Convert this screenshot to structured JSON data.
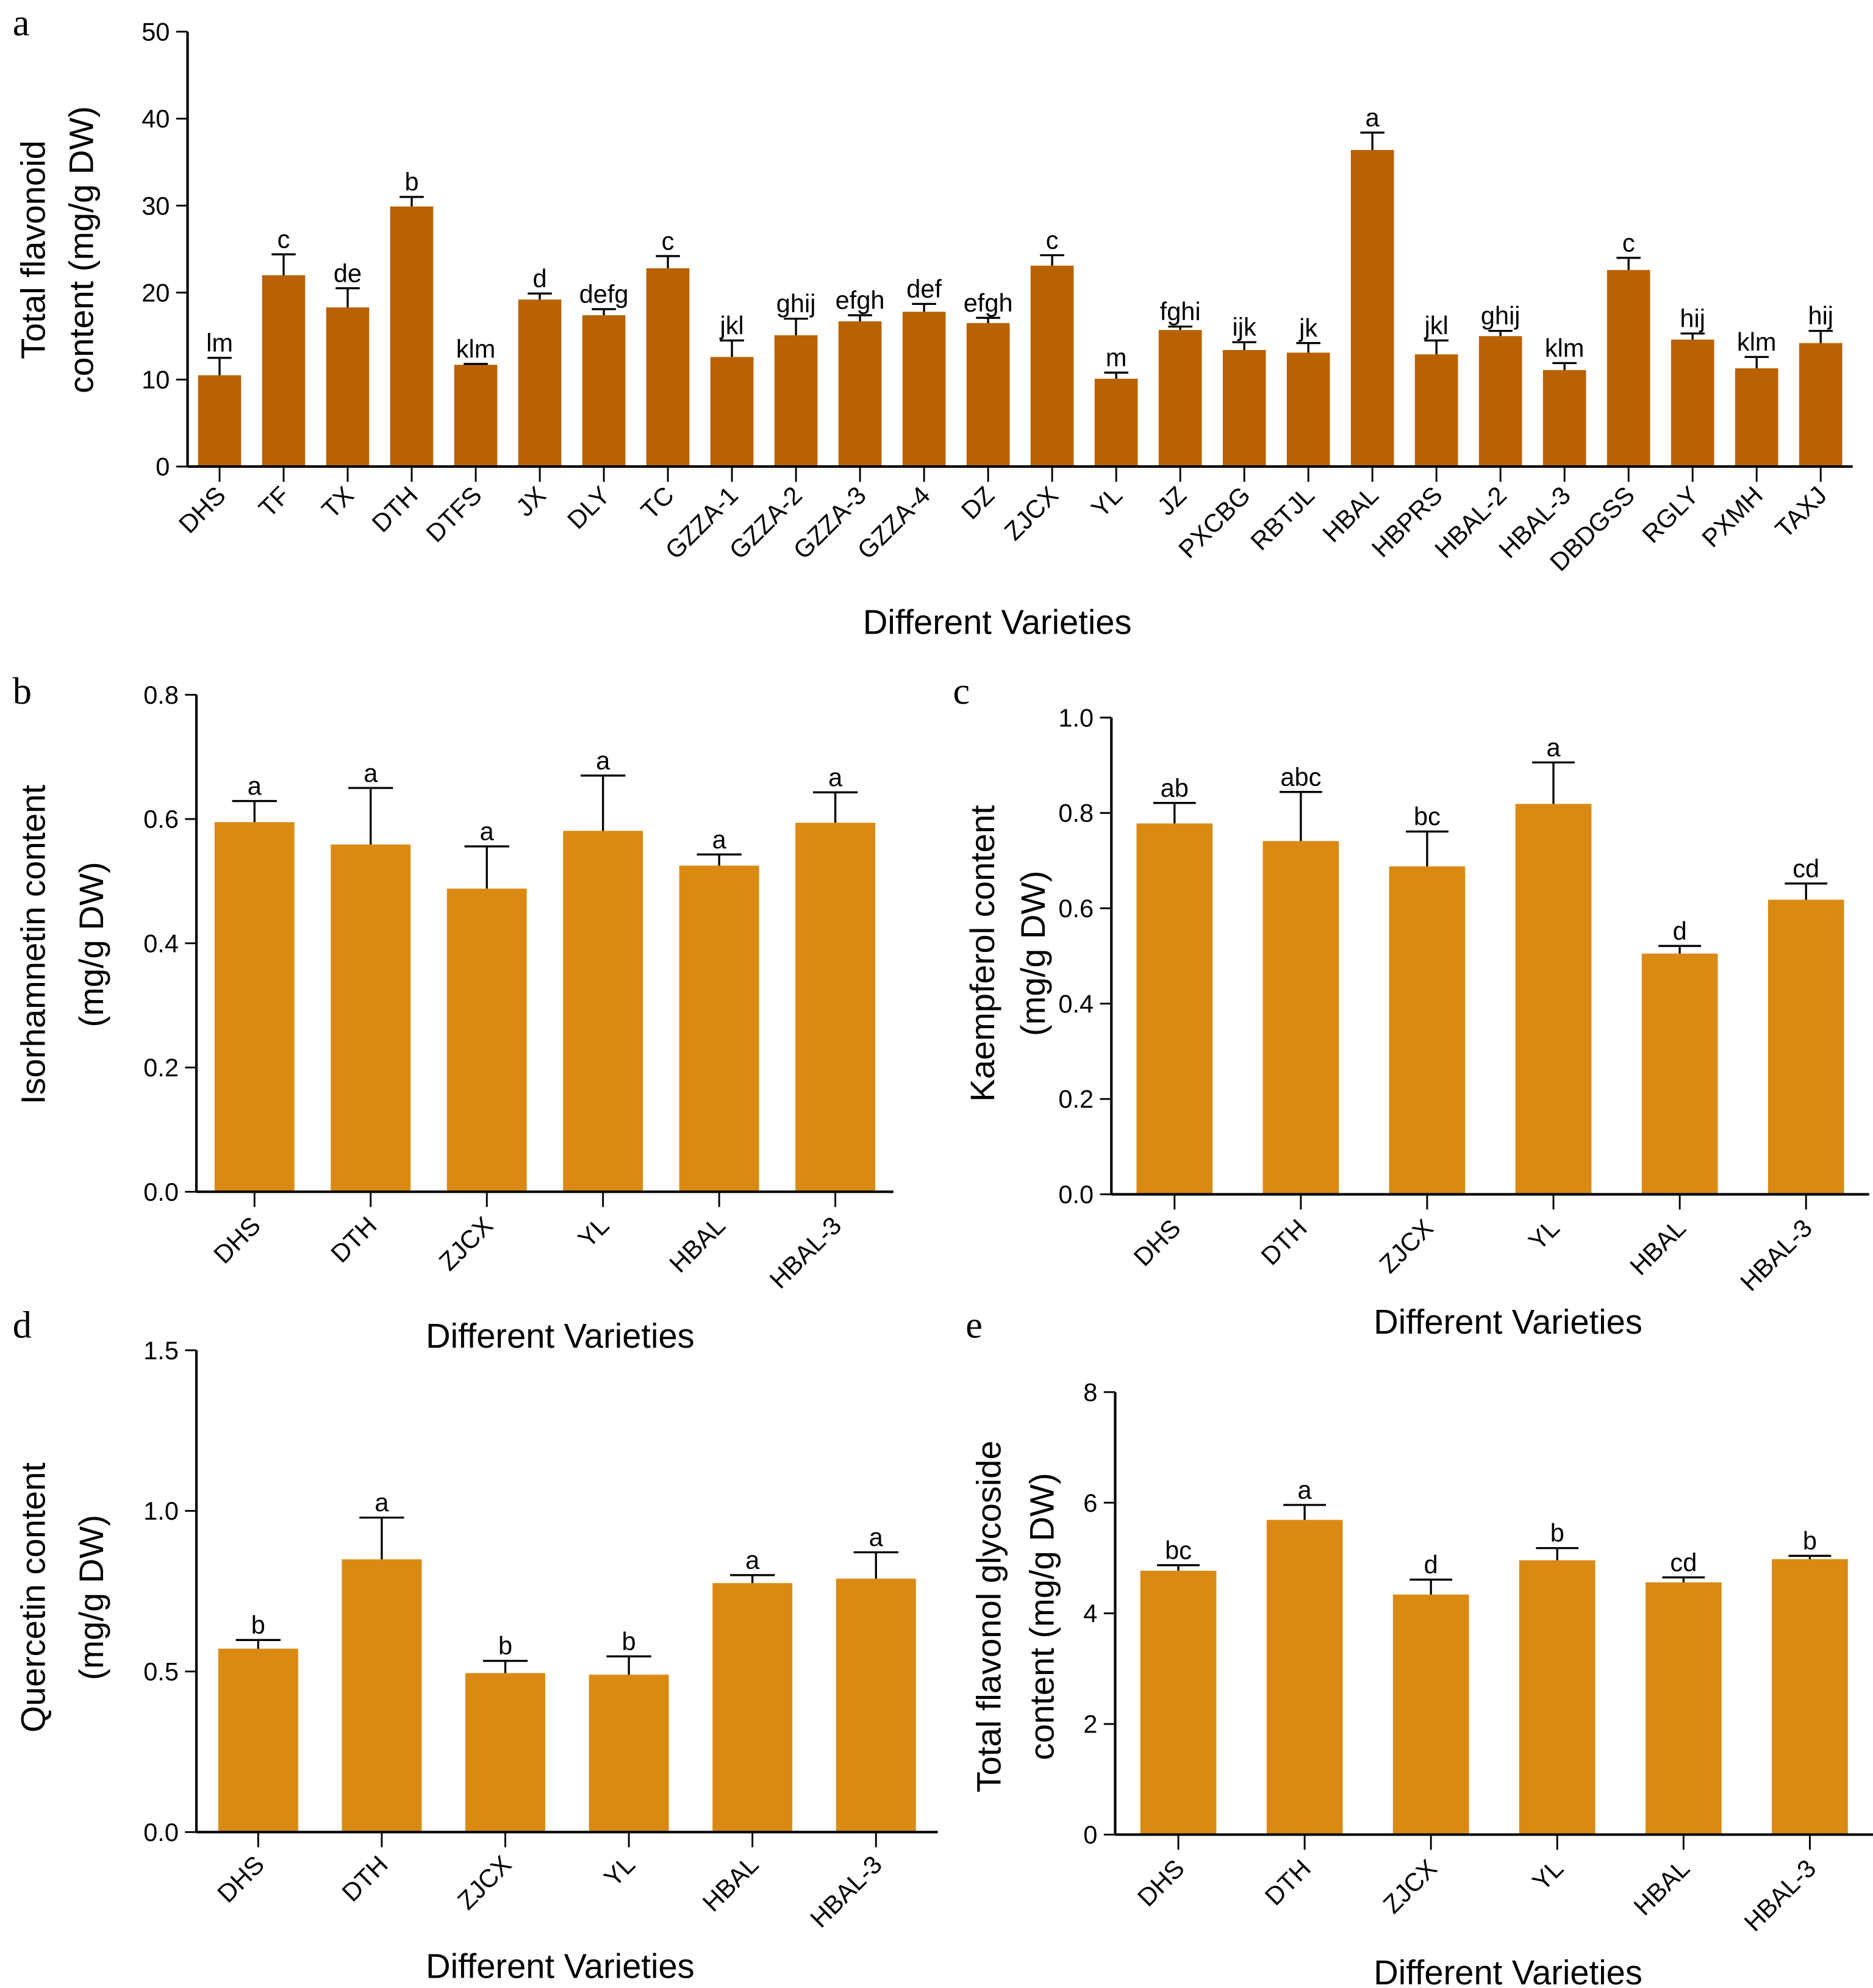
{
  "figure": {
    "panel_letters": [
      "a",
      "b",
      "c",
      "d",
      "e"
    ]
  },
  "chart_data": [
    {
      "panel": "a",
      "type": "bar",
      "xlabel": "Different Varieties",
      "ylabel_lines": [
        "Total flavonoid",
        "content (mg/g DW)"
      ],
      "ylim": [
        0,
        50
      ],
      "yticks": [
        0,
        10,
        20,
        30,
        40,
        50
      ],
      "ytick_labels": [
        "0",
        "10",
        "20",
        "30",
        "40",
        "50"
      ],
      "bar_color": "#B96204",
      "categories": [
        "DHS",
        "TF",
        "TX",
        "DTH",
        "DTFS",
        "JX",
        "DLY",
        "TC",
        "GZZA-1",
        "GZZA-2",
        "GZZA-3",
        "GZZA-4",
        "DZ",
        "ZJCX",
        "YL",
        "JZ",
        "PXCBG",
        "RBTJL",
        "HBAL",
        "HBPRS",
        "HBAL-2",
        "HBAL-3",
        "DBDGSS",
        "RGLY",
        "PXMH",
        "TAXJ"
      ],
      "values": [
        10.5,
        22.0,
        18.3,
        29.9,
        11.7,
        19.2,
        17.4,
        22.8,
        12.6,
        15.1,
        16.7,
        17.8,
        16.5,
        23.1,
        10.1,
        15.7,
        13.4,
        13.1,
        36.4,
        12.9,
        15.0,
        11.1,
        22.6,
        14.6,
        11.3,
        14.2
      ],
      "errors": [
        2.0,
        2.4,
        2.2,
        1.1,
        0.1,
        0.7,
        0.7,
        1.4,
        1.9,
        1.9,
        0.7,
        0.9,
        0.6,
        1.2,
        0.7,
        0.4,
        0.9,
        1.1,
        2.0,
        1.6,
        0.6,
        0.8,
        1.4,
        0.7,
        1.3,
        1.4
      ],
      "significance": [
        "lm",
        "c",
        "de",
        "b",
        "klm",
        "d",
        "defg",
        "c",
        "jkl",
        "ghij",
        "efgh",
        "def",
        "efgh",
        "c",
        "m",
        "fghi",
        "ijk",
        "jk",
        "a",
        "jkl",
        "ghij",
        "klm",
        "c",
        "hij",
        "klm",
        "hij"
      ]
    },
    {
      "panel": "b",
      "type": "bar",
      "xlabel": "Different Varieties",
      "ylabel_lines": [
        "Isorhamnetin  content",
        "(mg/g DW)"
      ],
      "ylim": [
        0,
        0.8
      ],
      "yticks": [
        0,
        0.2,
        0.4,
        0.6,
        0.8
      ],
      "ytick_labels": [
        "0.0",
        "0.2",
        "0.4",
        "0.6",
        "0.8"
      ],
      "bar_color": "#DA8A12",
      "categories": [
        "DHS",
        "DTH",
        "ZJCX",
        "YL",
        "HBAL",
        "HBAL-3"
      ],
      "values": [
        0.595,
        0.559,
        0.488,
        0.581,
        0.525,
        0.594
      ],
      "errors": [
        0.034,
        0.091,
        0.068,
        0.089,
        0.018,
        0.049
      ],
      "significance": [
        "a",
        "a",
        "a",
        "a",
        "a",
        "a"
      ]
    },
    {
      "panel": "c",
      "type": "bar",
      "xlabel": "Different Varieties",
      "ylabel_lines": [
        "Kaempferol  content",
        "(mg/g DW)"
      ],
      "ylim": [
        0,
        1.0
      ],
      "yticks": [
        0,
        0.2,
        0.4,
        0.6,
        0.8,
        1.0
      ],
      "ytick_labels": [
        "0.0",
        "0.2",
        "0.4",
        "0.6",
        "0.8",
        "1.0"
      ],
      "bar_color": "#DA8A12",
      "categories": [
        "DHS",
        "DTH",
        "ZJCX",
        "YL",
        "HBAL",
        "HBAL-3"
      ],
      "values": [
        0.778,
        0.741,
        0.688,
        0.819,
        0.505,
        0.618
      ],
      "errors": [
        0.043,
        0.103,
        0.073,
        0.087,
        0.016,
        0.034
      ],
      "significance": [
        "ab",
        "abc",
        "bc",
        "a",
        "d",
        "cd"
      ]
    },
    {
      "panel": "d",
      "type": "bar",
      "xlabel": "Different Varieties",
      "ylabel_lines": [
        "Quercetin  content",
        "(mg/g DW)"
      ],
      "ylim": [
        0,
        1.5
      ],
      "yticks": [
        0,
        0.5,
        1.0,
        1.5
      ],
      "ytick_labels": [
        "0.0",
        "0.5",
        "1.0",
        "1.5"
      ],
      "bar_color": "#DA8A12",
      "categories": [
        "DHS",
        "DTH",
        "ZJCX",
        "YL",
        "HBAL",
        "HBAL-3"
      ],
      "values": [
        0.571,
        0.849,
        0.495,
        0.49,
        0.775,
        0.789
      ],
      "errors": [
        0.027,
        0.13,
        0.038,
        0.057,
        0.025,
        0.082
      ],
      "significance": [
        "b",
        "a",
        "b",
        "b",
        "a",
        "a"
      ]
    },
    {
      "panel": "e",
      "type": "bar",
      "xlabel": "Different Varieties",
      "ylabel_lines": [
        "Total  flavonol  glycoside",
        "content  (mg/g  DW)"
      ],
      "ylim": [
        0,
        8
      ],
      "yticks": [
        0,
        2,
        4,
        6,
        8
      ],
      "ytick_labels": [
        "0",
        "2",
        "4",
        "6",
        "8"
      ],
      "bar_color": "#DA8A12",
      "categories": [
        "DHS",
        "DTH",
        "ZJCX",
        "YL",
        "HBAL",
        "HBAL-3"
      ],
      "values": [
        4.77,
        5.69,
        4.34,
        4.96,
        4.56,
        4.98
      ],
      "errors": [
        0.1,
        0.27,
        0.27,
        0.22,
        0.09,
        0.06
      ],
      "significance": [
        "bc",
        "a",
        "d",
        "b",
        "cd",
        "b"
      ]
    }
  ]
}
